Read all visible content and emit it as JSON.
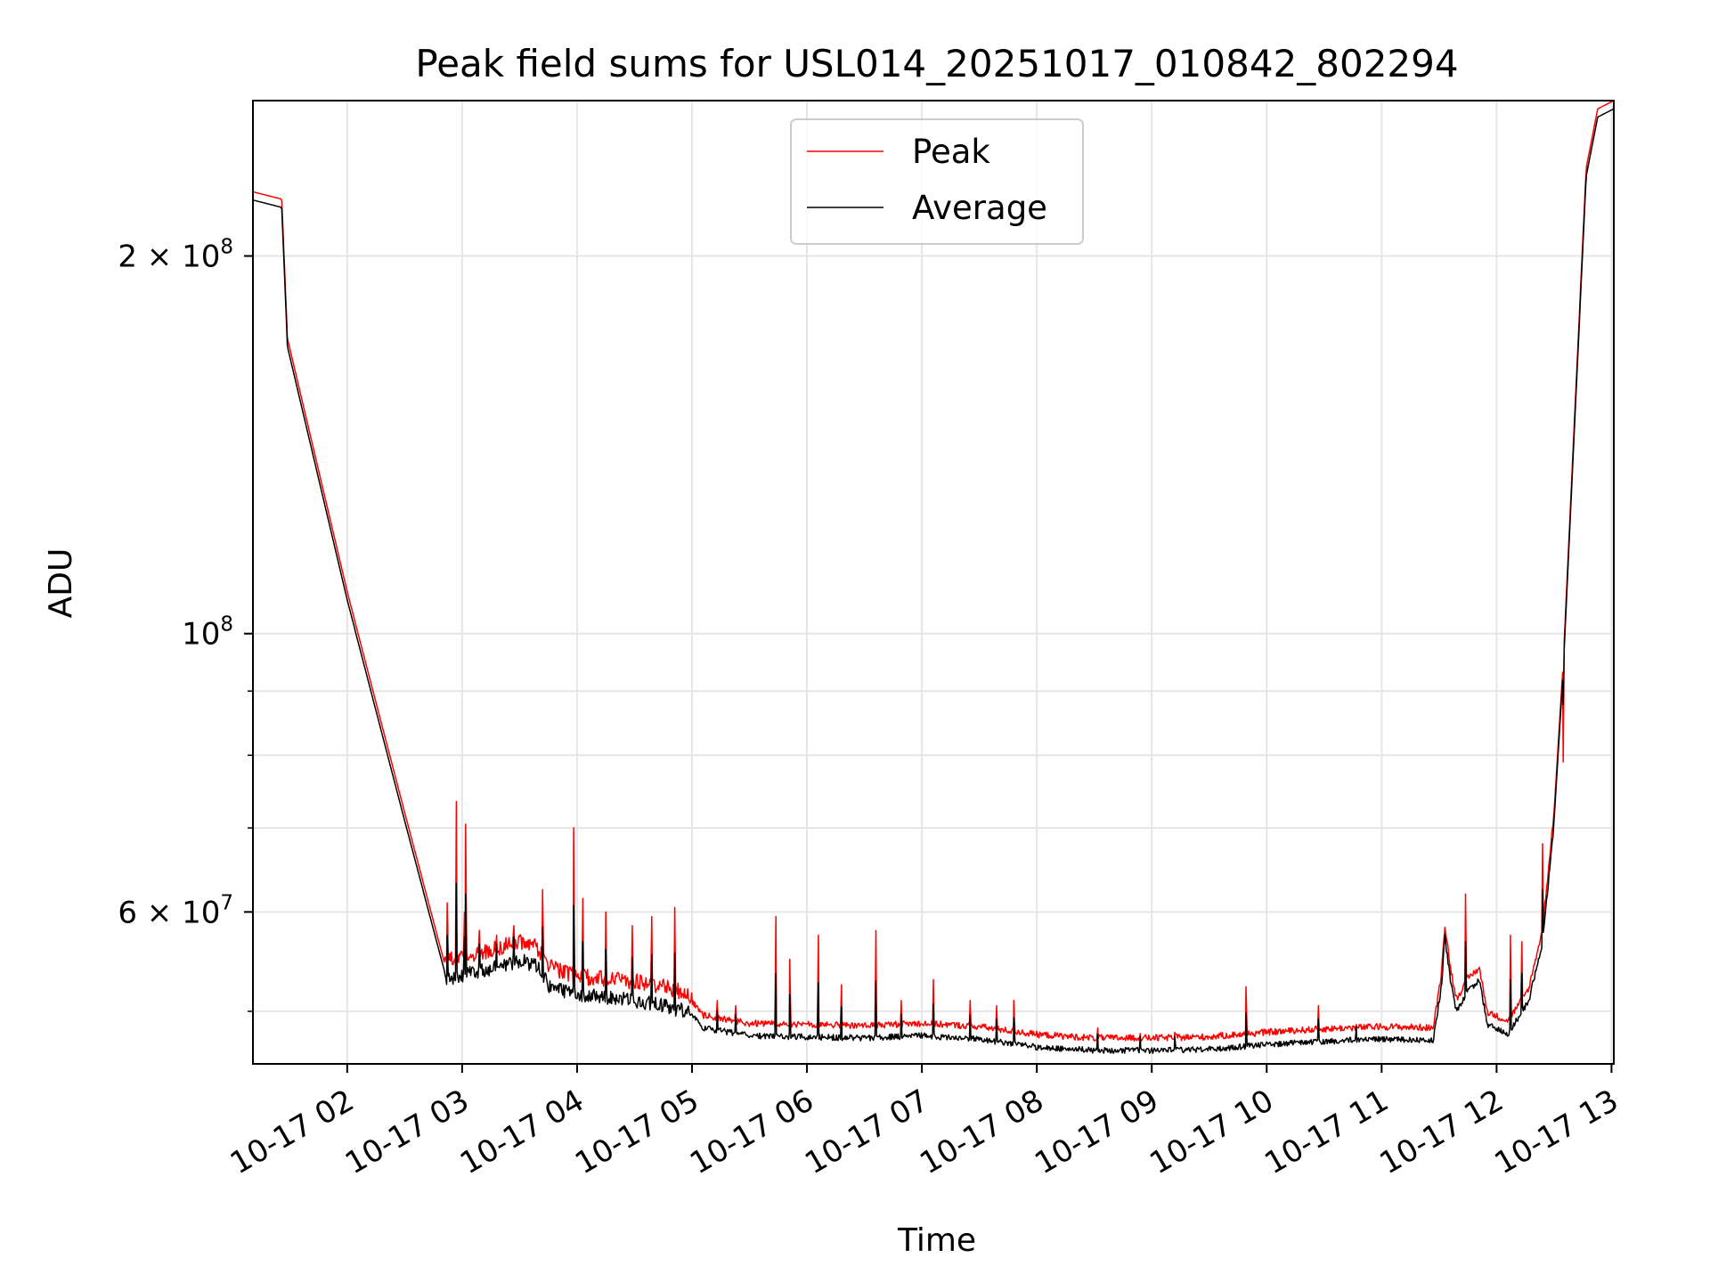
{
  "chart_data": {
    "type": "line",
    "title": "Peak field sums for USL014_20251017_010842_802294",
    "xlabel": "Time",
    "ylabel": "ADU",
    "yscale": "log",
    "ylim": [
      45400000,
      266000000
    ],
    "xlim_hours": [
      1.18,
      13.02
    ],
    "grid": true,
    "legend_position": "upper center",
    "colors": {
      "peak": "#ff0000",
      "average": "#000000",
      "grid": "#e6e6e6"
    },
    "x_ticks": [
      {
        "hour": 2,
        "label": "10-17 02"
      },
      {
        "hour": 3,
        "label": "10-17 03"
      },
      {
        "hour": 4,
        "label": "10-17 04"
      },
      {
        "hour": 5,
        "label": "10-17 05"
      },
      {
        "hour": 6,
        "label": "10-17 06"
      },
      {
        "hour": 7,
        "label": "10-17 07"
      },
      {
        "hour": 8,
        "label": "10-17 08"
      },
      {
        "hour": 9,
        "label": "10-17 09"
      },
      {
        "hour": 10,
        "label": "10-17 10"
      },
      {
        "hour": 11,
        "label": "10-17 11"
      },
      {
        "hour": 12,
        "label": "10-17 12"
      },
      {
        "hour": 13,
        "label": "10-17 13"
      }
    ],
    "y_major_ticks": [
      {
        "value": 200000000,
        "mantissa": "2",
        "exp": "8"
      },
      {
        "value": 100000000,
        "mantissa": "",
        "exp": "8"
      },
      {
        "value": 60000000,
        "mantissa": "6",
        "exp": "7"
      }
    ],
    "y_minor_gridlines": [
      50000000,
      70000000,
      80000000,
      90000000
    ],
    "series": [
      {
        "name": "Peak",
        "color": "#ff0000",
        "baseline": [
          [
            1.18,
            225000000
          ],
          [
            1.43,
            222000000
          ],
          [
            1.48,
            172000000
          ],
          [
            2.0,
            108000000
          ],
          [
            2.5,
            72000000
          ],
          [
            2.85,
            54500000
          ],
          [
            3.0,
            55000000
          ],
          [
            3.2,
            55500000
          ],
          [
            3.35,
            56000000
          ],
          [
            3.5,
            56500000
          ],
          [
            3.65,
            56000000
          ],
          [
            3.75,
            54000000
          ],
          [
            4.0,
            53000000
          ],
          [
            4.5,
            52500000
          ],
          [
            4.95,
            51500000
          ],
          [
            5.1,
            49500000
          ],
          [
            5.5,
            48800000
          ],
          [
            6.0,
            48700000
          ],
          [
            6.5,
            48600000
          ],
          [
            7.0,
            48800000
          ],
          [
            7.5,
            48500000
          ],
          [
            8.0,
            47800000
          ],
          [
            8.5,
            47500000
          ],
          [
            9.0,
            47500000
          ],
          [
            9.5,
            47600000
          ],
          [
            10.0,
            48000000
          ],
          [
            10.5,
            48300000
          ],
          [
            11.0,
            48500000
          ],
          [
            11.45,
            48400000
          ],
          [
            11.52,
            53500000
          ],
          [
            11.55,
            58500000
          ],
          [
            11.6,
            54000000
          ],
          [
            11.65,
            51000000
          ],
          [
            11.75,
            53000000
          ],
          [
            11.85,
            54000000
          ],
          [
            11.92,
            49800000
          ],
          [
            12.1,
            49000000
          ],
          [
            12.28,
            52000000
          ],
          [
            12.4,
            58000000
          ],
          [
            12.5,
            72000000
          ],
          [
            12.58,
            95000000
          ],
          [
            12.68,
            150000000
          ],
          [
            12.78,
            235000000
          ],
          [
            12.88,
            262000000
          ],
          [
            13.02,
            266000000
          ]
        ],
        "spikes": [
          [
            2.95,
            73500000
          ],
          [
            3.03,
            70500000
          ],
          [
            3.02,
            60000000
          ],
          [
            2.87,
            61000000
          ],
          [
            3.15,
            58000000
          ],
          [
            3.3,
            57500000
          ],
          [
            3.45,
            58500000
          ],
          [
            3.7,
            62500000
          ],
          [
            3.97,
            70000000
          ],
          [
            4.05,
            61500000
          ],
          [
            4.25,
            60000000
          ],
          [
            4.48,
            58500000
          ],
          [
            4.65,
            59500000
          ],
          [
            4.85,
            60500000
          ],
          [
            5.22,
            51000000
          ],
          [
            5.38,
            50500000
          ],
          [
            5.73,
            59500000
          ],
          [
            5.85,
            55000000
          ],
          [
            6.1,
            57500000
          ],
          [
            6.3,
            52500000
          ],
          [
            6.6,
            58000000
          ],
          [
            6.82,
            51000000
          ],
          [
            7.1,
            53000000
          ],
          [
            7.42,
            51000000
          ],
          [
            7.65,
            50500000
          ],
          [
            7.8,
            51000000
          ],
          [
            8.53,
            48500000
          ],
          [
            8.9,
            48000000
          ],
          [
            9.2,
            48100000
          ],
          [
            9.82,
            52300000
          ],
          [
            10.45,
            50500000
          ],
          [
            10.78,
            48800000
          ],
          [
            11.73,
            62000000
          ],
          [
            12.12,
            57500000
          ],
          [
            12.22,
            56800000
          ],
          [
            12.4,
            68000000
          ],
          [
            12.58,
            79000000
          ]
        ]
      },
      {
        "name": "Average",
        "color": "#000000",
        "offset_ratio": 0.985
      }
    ]
  }
}
